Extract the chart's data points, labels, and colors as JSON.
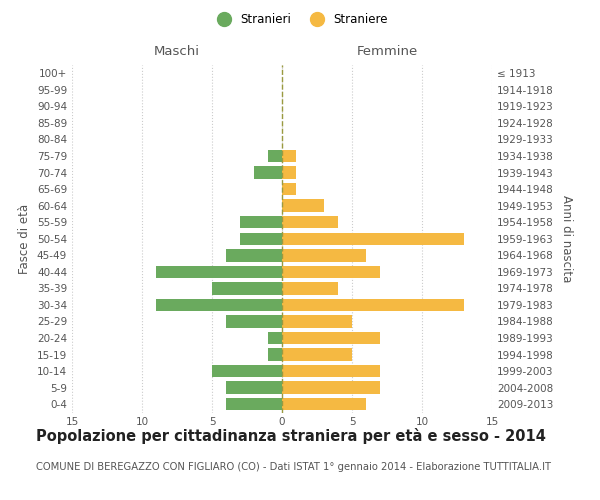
{
  "age_groups": [
    "100+",
    "95-99",
    "90-94",
    "85-89",
    "80-84",
    "75-79",
    "70-74",
    "65-69",
    "60-64",
    "55-59",
    "50-54",
    "45-49",
    "40-44",
    "35-39",
    "30-34",
    "25-29",
    "20-24",
    "15-19",
    "10-14",
    "5-9",
    "0-4"
  ],
  "birth_years": [
    "≤ 1913",
    "1914-1918",
    "1919-1923",
    "1924-1928",
    "1929-1933",
    "1934-1938",
    "1939-1943",
    "1944-1948",
    "1949-1953",
    "1954-1958",
    "1959-1963",
    "1964-1968",
    "1969-1973",
    "1974-1978",
    "1979-1983",
    "1984-1988",
    "1989-1993",
    "1994-1998",
    "1999-2003",
    "2004-2008",
    "2009-2013"
  ],
  "males": [
    0,
    0,
    0,
    0,
    0,
    1,
    2,
    0,
    0,
    3,
    3,
    4,
    9,
    5,
    9,
    4,
    1,
    1,
    5,
    4,
    4
  ],
  "females": [
    0,
    0,
    0,
    0,
    0,
    1,
    1,
    1,
    3,
    4,
    13,
    6,
    7,
    4,
    13,
    5,
    7,
    5,
    7,
    7,
    6
  ],
  "male_color": "#6aaa5e",
  "female_color": "#f5b942",
  "title": "Popolazione per cittadinanza straniera per età e sesso - 2014",
  "subtitle": "COMUNE DI BEREGAZZO CON FIGLIARO (CO) - Dati ISTAT 1° gennaio 2014 - Elaborazione TUTTITALIA.IT",
  "header_left": "Maschi",
  "header_right": "Femmine",
  "ylabel_left": "Fasce di età",
  "ylabel_right": "Anni di nascita",
  "xlim": 15,
  "legend_male": "Stranieri",
  "legend_female": "Straniere",
  "bg_color": "#ffffff",
  "grid_color": "#cccccc",
  "center_color": "#9a9a40",
  "tick_fontsize": 7.5,
  "header_fontsize": 9.5,
  "label_fontsize": 8.5,
  "title_fontsize": 10.5,
  "subtitle_fontsize": 7.2,
  "bar_height": 0.75
}
